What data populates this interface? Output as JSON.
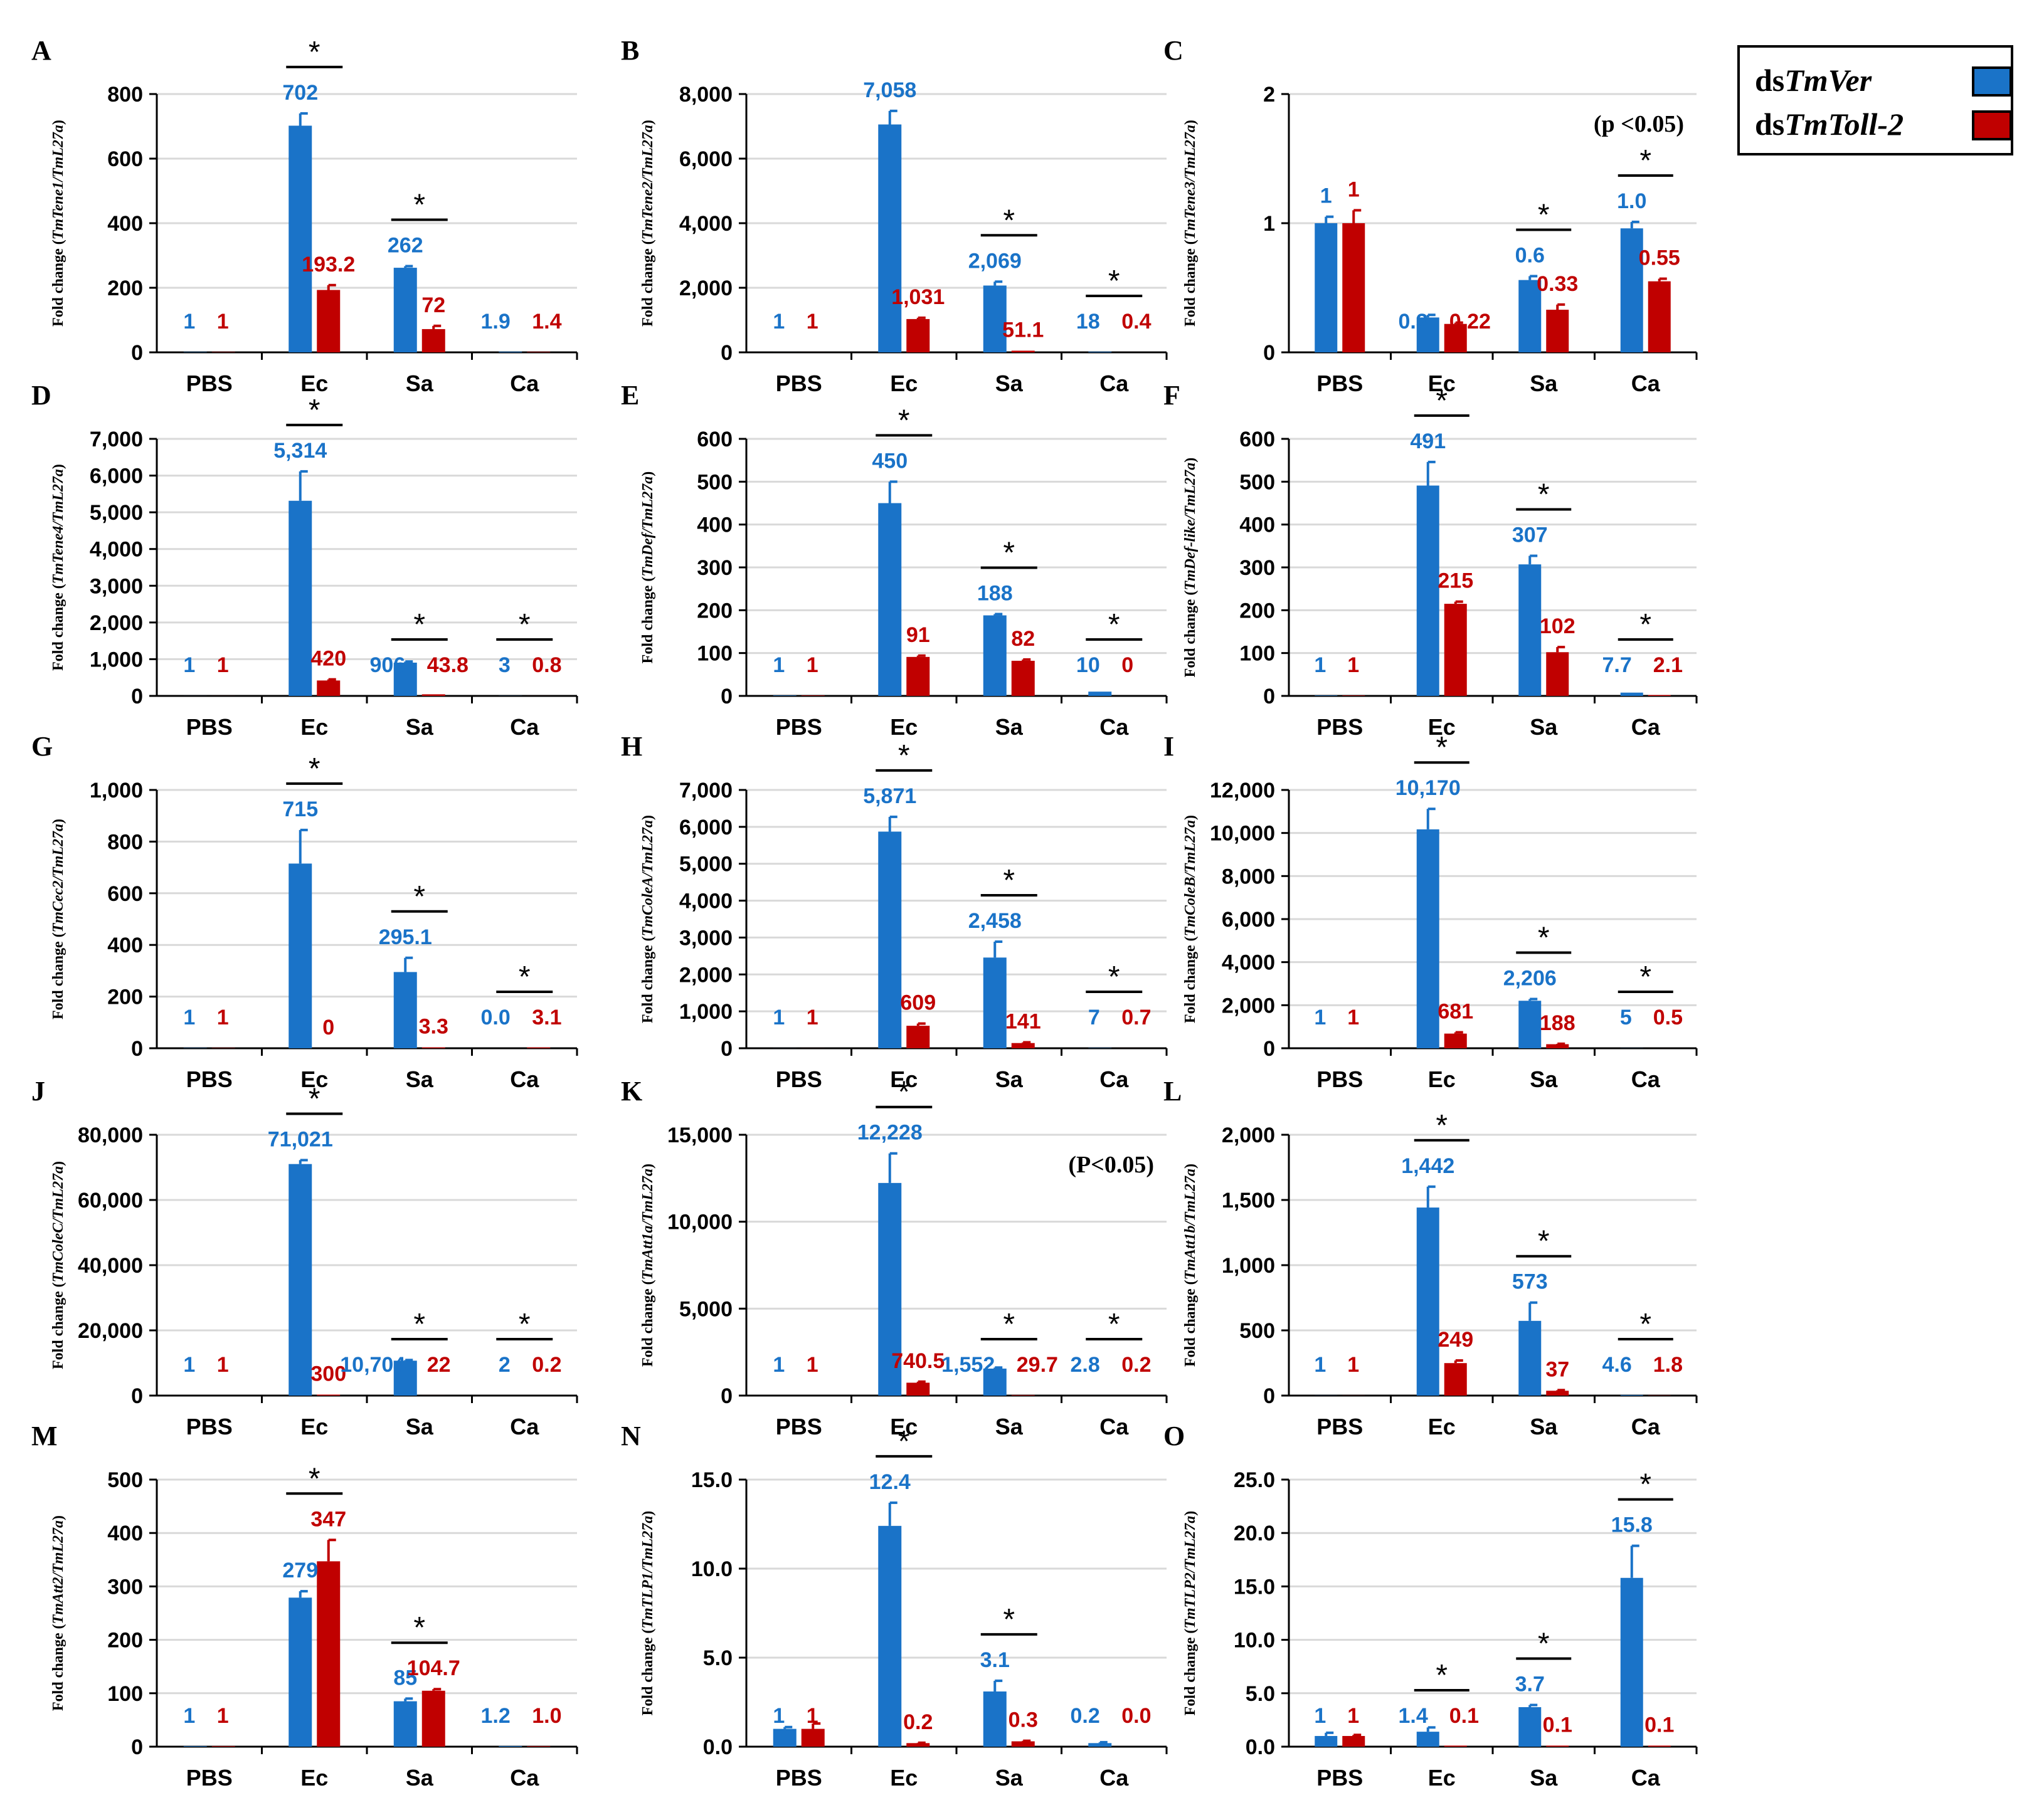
{
  "colors": {
    "ver": "#1a73c8",
    "toll": "#c00000",
    "axis": "#000000",
    "grid": "#d9d9d9"
  },
  "legend": {
    "ver_prefix": "ds",
    "ver_italic": "TmVer",
    "toll_prefix": "ds",
    "toll_italic": "TmToll-2"
  },
  "chart_data": [
    {
      "panel": "A",
      "type": "bar",
      "ylabel_prefix": "Fold change (",
      "ylabel_gene": "TmTene1/TmL27a",
      "ylabel_suffix": ")",
      "ylim": [
        0,
        800
      ],
      "yticks": [
        "0",
        "200",
        "400",
        "600",
        "800"
      ],
      "categories": [
        "PBS",
        "Ec",
        "Sa",
        "Ca"
      ],
      "series": [
        {
          "name": "dsTmVer",
          "values": [
            1,
            702,
            262,
            1.9
          ],
          "errors": [
            0,
            38,
            5,
            0
          ],
          "labels": [
            "1",
            "702",
            "262",
            "1.9"
          ]
        },
        {
          "name": "dsTmToll-2",
          "values": [
            1,
            193.2,
            72,
            1.4
          ],
          "errors": [
            0,
            15,
            10,
            0
          ],
          "labels": [
            "1",
            "193.2",
            "72",
            "1.4"
          ]
        }
      ],
      "significance": [
        "Ec",
        "Sa"
      ],
      "note": ""
    },
    {
      "panel": "B",
      "type": "bar",
      "ylabel_prefix": "Fold change (",
      "ylabel_gene": "TmTene2/TmL27a",
      "ylabel_suffix": ")",
      "ylim": [
        0,
        8000
      ],
      "yticks": [
        "0",
        "2,000",
        "4,000",
        "6,000",
        "8,000"
      ],
      "categories": [
        "PBS",
        "Ec",
        "Sa",
        "Ca"
      ],
      "series": [
        {
          "name": "dsTmVer",
          "values": [
            1,
            7058,
            2069,
            18
          ],
          "errors": [
            0,
            420,
            120,
            0
          ],
          "labels": [
            "1",
            "7,058",
            "2,069",
            "18"
          ]
        },
        {
          "name": "dsTmToll-2",
          "values": [
            1,
            1031,
            51.1,
            0.4
          ],
          "errors": [
            0,
            40,
            0,
            0
          ],
          "labels": [
            "1",
            "1,031",
            "51.1",
            "0.4"
          ]
        }
      ],
      "significance": [
        "Sa",
        "Ca"
      ],
      "note": ""
    },
    {
      "panel": "C",
      "type": "bar",
      "ylabel_prefix": "Fold change (",
      "ylabel_gene": "TmTene3/TmL27a",
      "ylabel_suffix": ")",
      "ylim": [
        0,
        2
      ],
      "yticks": [
        "0",
        "1",
        "2"
      ],
      "categories": [
        "PBS",
        "Ec",
        "Sa",
        "Ca"
      ],
      "series": [
        {
          "name": "dsTmVer",
          "values": [
            1,
            0.27,
            0.56,
            0.96
          ],
          "errors": [
            0.05,
            0.02,
            0.03,
            0.05
          ],
          "labels": [
            "1",
            "0.3",
            "0.6",
            "1.0"
          ]
        },
        {
          "name": "dsTmToll-2",
          "values": [
            1,
            0.22,
            0.33,
            0.55
          ],
          "errors": [
            0.1,
            0.01,
            0.04,
            0.02
          ],
          "labels": [
            "1",
            "0.22",
            "0.33",
            "0.55"
          ]
        }
      ],
      "significance": [
        "Sa",
        "Ca"
      ],
      "note": "(p <0.05)"
    },
    {
      "panel": "D",
      "type": "bar",
      "ylabel_prefix": "Fold change (",
      "ylabel_gene": "TmTene4/TmL27a",
      "ylabel_suffix": ")",
      "ylim": [
        0,
        7000
      ],
      "yticks": [
        "0",
        "1,000",
        "2,000",
        "3,000",
        "4,000",
        "5,000",
        "6,000",
        "7,000"
      ],
      "categories": [
        "PBS",
        "Ec",
        "Sa",
        "Ca"
      ],
      "series": [
        {
          "name": "dsTmVer",
          "values": [
            1,
            5314,
            906,
            3
          ],
          "errors": [
            0,
            800,
            30,
            0
          ],
          "labels": [
            "1",
            "5,314",
            "906",
            "3"
          ]
        },
        {
          "name": "dsTmToll-2",
          "values": [
            1,
            420,
            43.8,
            0.8
          ],
          "errors": [
            0,
            30,
            0,
            0
          ],
          "labels": [
            "1",
            "420",
            "43.8",
            "0.8"
          ]
        }
      ],
      "significance": [
        "Ec",
        "Sa",
        "Ca"
      ],
      "note": ""
    },
    {
      "panel": "E",
      "type": "bar",
      "ylabel_prefix": "Fold change (",
      "ylabel_gene": "TmDef/TmL27a",
      "ylabel_suffix": ")",
      "ylim": [
        0,
        600
      ],
      "yticks": [
        "0",
        "100",
        "200",
        "300",
        "400",
        "500",
        "600"
      ],
      "categories": [
        "PBS",
        "Ec",
        "Sa",
        "Ca"
      ],
      "series": [
        {
          "name": "dsTmVer",
          "values": [
            1,
            450,
            188,
            10
          ],
          "errors": [
            0,
            50,
            3,
            0
          ],
          "labels": [
            "1",
            "450",
            "188",
            "10"
          ]
        },
        {
          "name": "dsTmToll-2",
          "values": [
            1,
            91,
            82,
            0
          ],
          "errors": [
            0,
            3,
            3,
            0
          ],
          "labels": [
            "1",
            "91",
            "82",
            "0"
          ]
        }
      ],
      "significance": [
        "Ec",
        "Sa",
        "Ca"
      ],
      "note": ""
    },
    {
      "panel": "F",
      "type": "bar",
      "ylabel_prefix": "Fold change (",
      "ylabel_gene": "TmDef-like/TmL27a",
      "ylabel_suffix": ")",
      "ylim": [
        0,
        600
      ],
      "yticks": [
        "0",
        "100",
        "200",
        "300",
        "400",
        "500",
        "600"
      ],
      "categories": [
        "PBS",
        "Ec",
        "Sa",
        "Ca"
      ],
      "series": [
        {
          "name": "dsTmVer",
          "values": [
            1,
            491,
            307,
            7.7
          ],
          "errors": [
            0,
            55,
            20,
            0
          ],
          "labels": [
            "1",
            "491",
            "307",
            "7.7"
          ]
        },
        {
          "name": "dsTmToll-2",
          "values": [
            1,
            215,
            102,
            2.1
          ],
          "errors": [
            0,
            5,
            12,
            0
          ],
          "labels": [
            "1",
            "215",
            "102",
            "2.1"
          ]
        }
      ],
      "significance": [
        "Ec",
        "Sa",
        "Ca"
      ],
      "note": ""
    },
    {
      "panel": "G",
      "type": "bar",
      "ylabel_prefix": "Fold change (",
      "ylabel_gene": "TmCec2/TmL27a",
      "ylabel_suffix": ")",
      "ylim": [
        0,
        1000
      ],
      "yticks": [
        "0",
        "200",
        "400",
        "600",
        "800",
        "1,000"
      ],
      "categories": [
        "PBS",
        "Ec",
        "Sa",
        "Ca"
      ],
      "series": [
        {
          "name": "dsTmVer",
          "values": [
            1,
            715,
            295.1,
            0.0
          ],
          "errors": [
            0,
            130,
            55,
            0
          ],
          "labels": [
            "1",
            "715",
            "295.1",
            "0.0"
          ]
        },
        {
          "name": "dsTmToll-2",
          "values": [
            1,
            0,
            3.3,
            3.1
          ],
          "errors": [
            0,
            0,
            0,
            0
          ],
          "labels": [
            "1",
            "0",
            "3.3",
            "3.1"
          ]
        }
      ],
      "significance": [
        "Ec",
        "Sa",
        "Ca"
      ],
      "note": ""
    },
    {
      "panel": "H",
      "type": "bar",
      "ylabel_prefix": "Fold change (",
      "ylabel_gene": "TmColeA/TmL27a",
      "ylabel_suffix": ")",
      "ylim": [
        0,
        7000
      ],
      "yticks": [
        "0",
        "1,000",
        "2,000",
        "3,000",
        "4,000",
        "5,000",
        "6,000",
        "7,000"
      ],
      "categories": [
        "PBS",
        "Ec",
        "Sa",
        "Ca"
      ],
      "series": [
        {
          "name": "dsTmVer",
          "values": [
            1,
            5871,
            2458,
            7
          ],
          "errors": [
            0,
            400,
            430,
            0
          ],
          "labels": [
            "1",
            "5,871",
            "2,458",
            "7"
          ]
        },
        {
          "name": "dsTmToll-2",
          "values": [
            1,
            609,
            141,
            0.7
          ],
          "errors": [
            0,
            60,
            20,
            0
          ],
          "labels": [
            "1",
            "609",
            "141",
            "0.7"
          ]
        }
      ],
      "significance": [
        "Ec",
        "Sa",
        "Ca"
      ],
      "note": ""
    },
    {
      "panel": "I",
      "type": "bar",
      "ylabel_prefix": "Fold change (",
      "ylabel_gene": "TmColeB/TmL27a",
      "ylabel_suffix": ")",
      "ylim": [
        0,
        12000
      ],
      "yticks": [
        "0",
        "2,000",
        "4,000",
        "6,000",
        "8,000",
        "10,000",
        "12,000"
      ],
      "categories": [
        "PBS",
        "Ec",
        "Sa",
        "Ca"
      ],
      "series": [
        {
          "name": "dsTmVer",
          "values": [
            1,
            10170,
            2206,
            5
          ],
          "errors": [
            0,
            950,
            80,
            0
          ],
          "labels": [
            "1",
            "10,170",
            "2,206",
            "5"
          ]
        },
        {
          "name": "dsTmToll-2",
          "values": [
            1,
            681,
            188,
            0.5
          ],
          "errors": [
            0,
            60,
            20,
            0
          ],
          "labels": [
            "1",
            "681",
            "188",
            "0.5"
          ]
        }
      ],
      "significance": [
        "Ec",
        "Sa",
        "Ca"
      ],
      "note": ""
    },
    {
      "panel": "J",
      "type": "bar",
      "ylabel_prefix": "Fold change (",
      "ylabel_gene": "TmColeC/TmL27a",
      "ylabel_suffix": ")",
      "ylim": [
        0,
        80000
      ],
      "yticks": [
        "0",
        "20,000",
        "40,000",
        "60,000",
        "80,000"
      ],
      "categories": [
        "PBS",
        "Ec",
        "Sa",
        "Ca"
      ],
      "series": [
        {
          "name": "dsTmVer",
          "values": [
            1,
            71021,
            10704,
            2
          ],
          "errors": [
            0,
            1200,
            200,
            0
          ],
          "labels": [
            "1",
            "71,021",
            "10,704",
            "2"
          ]
        },
        {
          "name": "dsTmToll-2",
          "values": [
            1,
            300,
            22,
            0.2
          ],
          "errors": [
            0,
            0,
            0,
            0
          ],
          "labels": [
            "1",
            "300",
            "22",
            "0.2"
          ]
        }
      ],
      "significance": [
        "Ec",
        "Sa",
        "Ca"
      ],
      "note": ""
    },
    {
      "panel": "K",
      "type": "bar",
      "ylabel_prefix": "Fold change (",
      "ylabel_gene": "TmAtt1a/TmL27a",
      "ylabel_suffix": ")",
      "ylim": [
        0,
        15000
      ],
      "yticks": [
        "0",
        "5,000",
        "10,000",
        "15,000"
      ],
      "categories": [
        "PBS",
        "Ec",
        "Sa",
        "Ca"
      ],
      "series": [
        {
          "name": "dsTmVer",
          "values": [
            1,
            12228,
            1552,
            2.8
          ],
          "errors": [
            0,
            1700,
            60,
            0
          ],
          "labels": [
            "1",
            "12,228",
            "1,552",
            "2.8"
          ]
        },
        {
          "name": "dsTmToll-2",
          "values": [
            1,
            740.5,
            29.7,
            0.2
          ],
          "errors": [
            0,
            60,
            0,
            0
          ],
          "labels": [
            "1",
            "740.5",
            "29.7",
            "0.2"
          ]
        }
      ],
      "significance": [
        "Ec",
        "Sa",
        "Ca"
      ],
      "note": "(P<0.05)"
    },
    {
      "panel": "L",
      "type": "bar",
      "ylabel_prefix": "Fold change (",
      "ylabel_gene": "TmAtt1b/TmL27a",
      "ylabel_suffix": ")",
      "ylim": [
        0,
        2000
      ],
      "yticks": [
        "0",
        "500",
        "1,000",
        "1,500",
        "2,000"
      ],
      "categories": [
        "PBS",
        "Ec",
        "Sa",
        "Ca"
      ],
      "series": [
        {
          "name": "dsTmVer",
          "values": [
            1,
            1442,
            573,
            4.6
          ],
          "errors": [
            0,
            160,
            140,
            0
          ],
          "labels": [
            "1",
            "1,442",
            "573",
            "4.6"
          ]
        },
        {
          "name": "dsTmToll-2",
          "values": [
            1,
            249,
            37,
            1.8
          ],
          "errors": [
            0,
            20,
            5,
            0
          ],
          "labels": [
            "1",
            "249",
            "37",
            "1.8"
          ]
        }
      ],
      "significance": [
        "Ec",
        "Sa",
        "Ca"
      ],
      "note": ""
    },
    {
      "panel": "M",
      "type": "bar",
      "ylabel_prefix": "Fold change (",
      "ylabel_gene": "TmAtt2/TmL27a",
      "ylabel_suffix": ")",
      "ylim": [
        0,
        500
      ],
      "yticks": [
        "0",
        "100",
        "200",
        "300",
        "400",
        "500"
      ],
      "categories": [
        "PBS",
        "Ec",
        "Sa",
        "Ca"
      ],
      "series": [
        {
          "name": "dsTmVer",
          "values": [
            1,
            279,
            85,
            1.2
          ],
          "errors": [
            0,
            12,
            5,
            0
          ],
          "labels": [
            "1",
            "279",
            "85",
            "1.2"
          ]
        },
        {
          "name": "dsTmToll-2",
          "values": [
            1,
            347,
            104.7,
            1.0
          ],
          "errors": [
            0,
            40,
            3,
            0
          ],
          "labels": [
            "1",
            "347",
            "104.7",
            "1.0"
          ]
        }
      ],
      "significance": [
        "Ec",
        "Sa"
      ],
      "note": ""
    },
    {
      "panel": "N",
      "type": "bar",
      "ylabel_prefix": "Fold change (",
      "ylabel_gene": "TmTLP1/TmL27a",
      "ylabel_suffix": ")",
      "ylim": [
        0,
        15
      ],
      "yticks": [
        "0.0",
        "5.0",
        "10.0",
        "15.0"
      ],
      "categories": [
        "PBS",
        "Ec",
        "Sa",
        "Ca"
      ],
      "series": [
        {
          "name": "dsTmVer",
          "values": [
            1,
            12.4,
            3.1,
            0.2
          ],
          "errors": [
            0.1,
            1.3,
            0.6,
            0.05
          ],
          "labels": [
            "1",
            "12.4",
            "3.1",
            "0.2"
          ]
        },
        {
          "name": "dsTmToll-2",
          "values": [
            1,
            0.2,
            0.3,
            0.0
          ],
          "errors": [
            0.3,
            0.02,
            0.03,
            0
          ],
          "labels": [
            "1",
            "0.2",
            "0.3",
            "0.0"
          ]
        }
      ],
      "significance": [
        "Ec",
        "Sa"
      ],
      "note": ""
    },
    {
      "panel": "O",
      "type": "bar",
      "ylabel_prefix": "Fold change (",
      "ylabel_gene": "TmTLP2/TmL27a",
      "ylabel_suffix": ")",
      "ylim": [
        0,
        25
      ],
      "yticks": [
        "0.0",
        "5.0",
        "10.0",
        "15.0",
        "20.0",
        "25.0"
      ],
      "categories": [
        "PBS",
        "Ec",
        "Sa",
        "Ca"
      ],
      "series": [
        {
          "name": "dsTmVer",
          "values": [
            1,
            1.4,
            3.7,
            15.8
          ],
          "errors": [
            0.3,
            0.4,
            0.2,
            3.0
          ],
          "labels": [
            "1",
            "1.4",
            "3.7",
            "15.8"
          ]
        },
        {
          "name": "dsTmToll-2",
          "values": [
            1,
            0.1,
            0.1,
            0.1
          ],
          "errors": [
            0.1,
            0,
            0,
            0
          ],
          "labels": [
            "1",
            "0.1",
            "0.1",
            "0.1"
          ]
        }
      ],
      "significance": [
        "Ec",
        "Sa",
        "Ca"
      ],
      "note": ""
    }
  ]
}
